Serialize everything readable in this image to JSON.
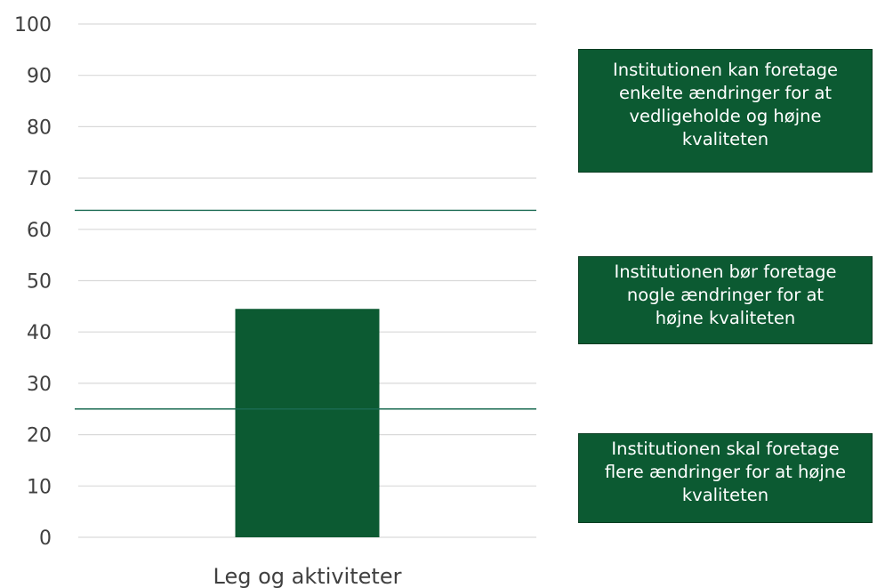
{
  "colors": {
    "bar": "#0c5a32",
    "box": "#0c5a32",
    "threshold_line": "#1a6a52",
    "grid": "#d9d9d9",
    "text": "#404040"
  },
  "chart_data": {
    "type": "bar",
    "categories": [
      "Leg og aktiviteter"
    ],
    "values": [
      44.5
    ],
    "ylim": [
      0,
      100
    ],
    "yticks": [
      0,
      10,
      20,
      30,
      40,
      50,
      60,
      70,
      80,
      90,
      100
    ],
    "grid": true,
    "thresholds": [
      25,
      63.7
    ],
    "title": "",
    "xlabel": "",
    "ylabel": ""
  },
  "zones": [
    {
      "lines": [
        "Institutionen kan foretage",
        "enkelte ændringer for at",
        "vedligeholde og højne",
        "kvaliteten"
      ]
    },
    {
      "lines": [
        "Institutionen bør foretage",
        "nogle ændringer for at",
        "højne kvaliteten"
      ]
    },
    {
      "lines": [
        "Institutionen skal foretage",
        "flere ændringer for at højne",
        "kvaliteten"
      ]
    }
  ]
}
